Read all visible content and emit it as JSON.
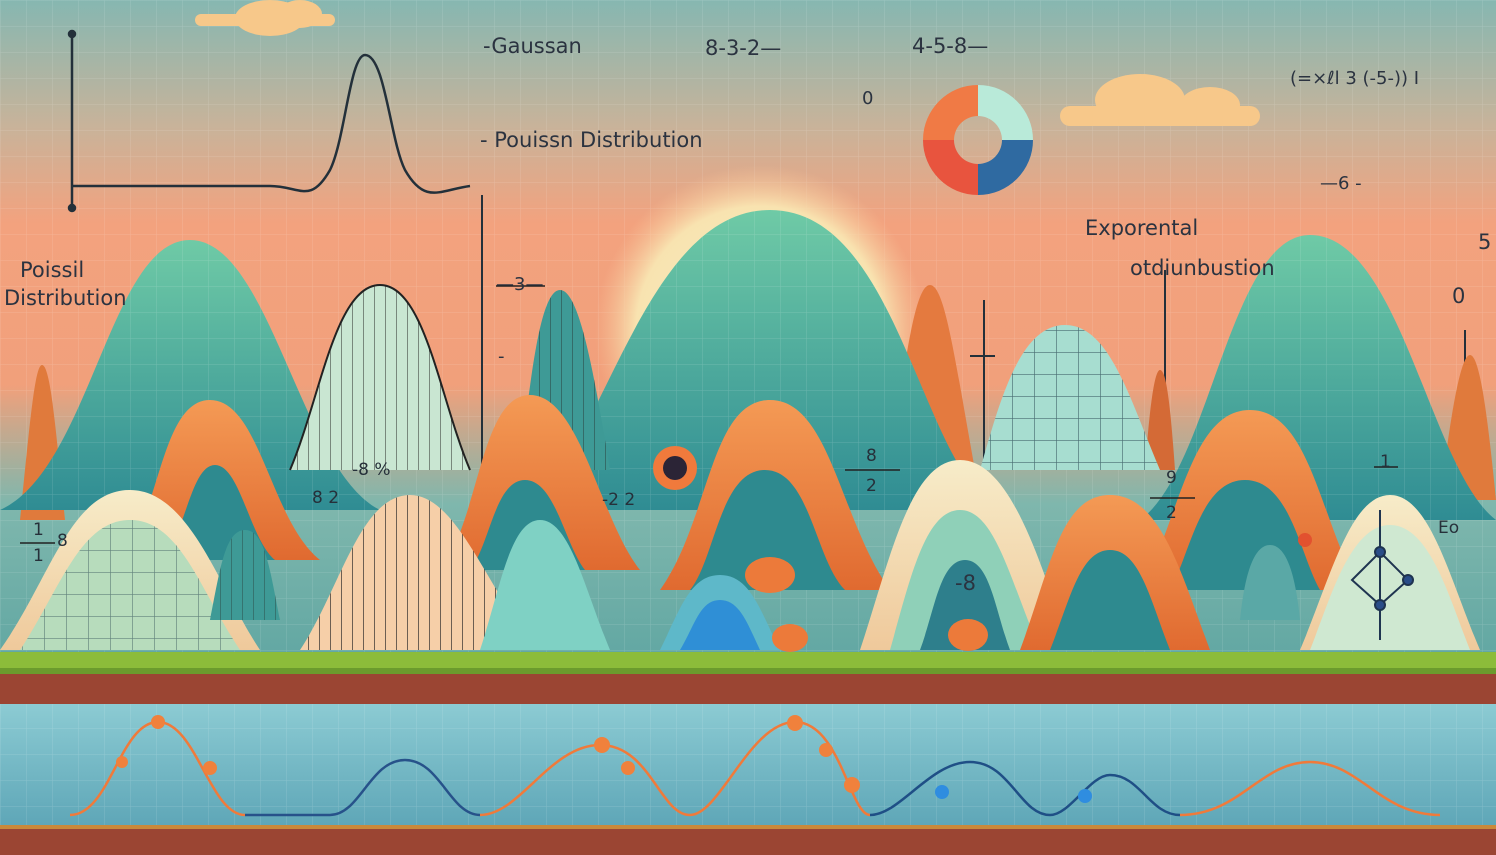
{
  "labels": {
    "gaussian": "-Gaussan",
    "poisson_top": "- Pouissn Distribution",
    "seq_a": "8-3-2—",
    "seq_b": "4-5-8—",
    "formula": "(=×ℓl 3 (-5-)) Ⅰ",
    "zero_top": "0",
    "dash6": "—6 -",
    "exponential": "Exporental",
    "odiunbustion": "otdiunbustion",
    "five": "5",
    "zero_right": "0",
    "poisson_left_1": "Poissil",
    "poisson_left_2": "Distribution",
    "minus3": "—3—",
    "dash": "-",
    "pct": "-8 %",
    "eight_two": "8 2",
    "minus22": "-2 2",
    "frac_a_num": "8",
    "frac_a_den": "2",
    "frac_b_num": "9",
    "frac_b_den": "2",
    "minus8": "-8",
    "frac_left_num": "1",
    "frac_left_den": "1",
    "frac_left_side": "8",
    "one_right": "1",
    "eo": "Eo"
  },
  "colors": {
    "sky_top": "#8fb9b2",
    "sky_mid": "#f0a07c",
    "teal": "#3f9c9a",
    "mint": "#6cc7a7",
    "orange": "#f0833f",
    "cream": "#f6e4c1",
    "blue": "#2f6ea8",
    "grass": "#8bbd3a",
    "dirt": "#9c4534",
    "bottom_band": "#73b4c6"
  }
}
